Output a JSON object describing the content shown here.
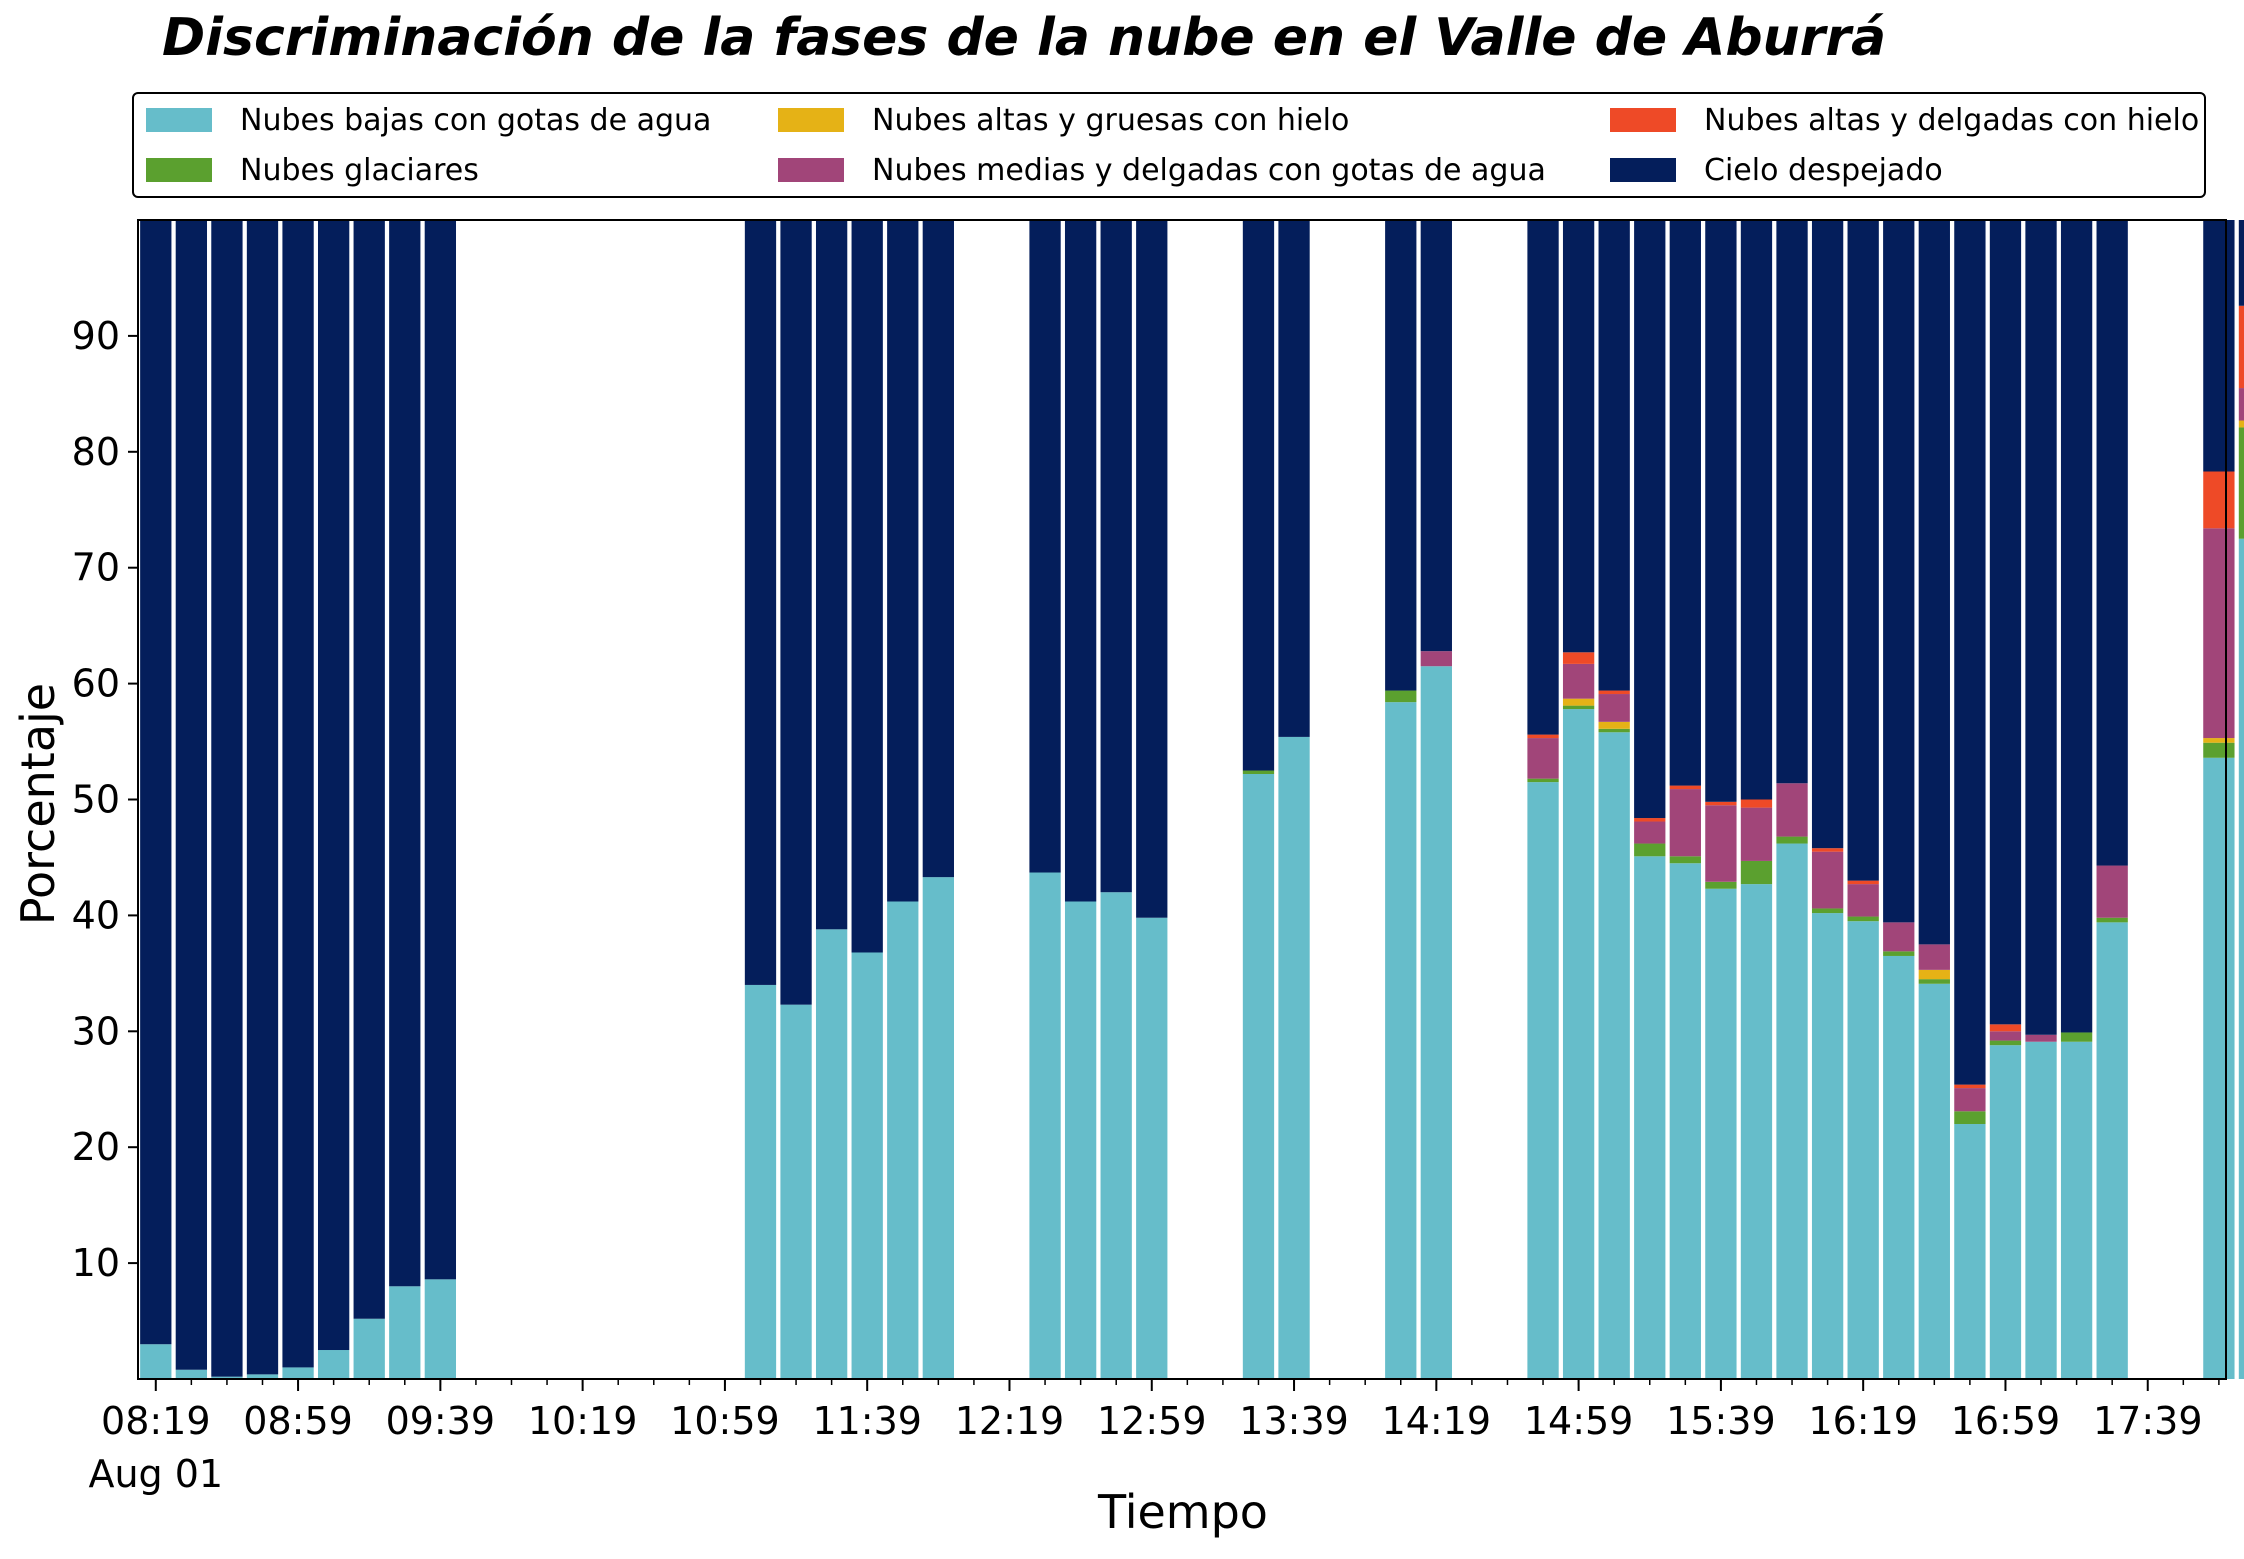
{
  "chart_data": {
    "type": "bar",
    "stacked": true,
    "title": "Discriminación de la fases de la nube en el Valle de Aburrá",
    "xlabel": "Tiempo",
    "ylabel": "Porcentaje",
    "ylim": [
      0,
      100
    ],
    "yticks": [
      10,
      20,
      30,
      40,
      50,
      60,
      70,
      80,
      90
    ],
    "x_date_label": "Aug 01",
    "x_range": [
      "08:14",
      "18:01"
    ],
    "xtick_labels": [
      "08:19",
      "08:59",
      "09:39",
      "10:19",
      "10:59",
      "11:39",
      "12:19",
      "12:59",
      "13:39",
      "14:19",
      "14:59",
      "15:39",
      "16:19",
      "16:59",
      "17:39"
    ],
    "bar_interval_minutes": 10,
    "grid": false,
    "legend_position": "top",
    "x": [
      "08:19",
      "08:29",
      "08:39",
      "08:49",
      "08:59",
      "09:09",
      "09:19",
      "09:29",
      "09:39",
      "11:09",
      "11:19",
      "11:29",
      "11:39",
      "11:49",
      "11:59",
      "12:09",
      "12:29",
      "12:39",
      "12:49",
      "12:59",
      "13:29",
      "13:39",
      "14:09",
      "14:19",
      "14:49",
      "14:59",
      "15:09",
      "15:19",
      "15:29",
      "15:39",
      "15:49",
      "15:59",
      "16:09",
      "16:19",
      "16:29",
      "16:39",
      "16:49",
      "16:59",
      "17:09",
      "17:19",
      "17:29",
      "17:59",
      "18:09"
    ],
    "series": [
      {
        "name": "Nubes bajas con gotas de agua",
        "color": "#66BDCA",
        "values": [
          3.0,
          0.8,
          0.2,
          0.4,
          1.0,
          2.5,
          5.2,
          8.0,
          8.6,
          34.0,
          32.3,
          38.8,
          36.8,
          41.2,
          43.3,
          0,
          43.7,
          41.2,
          42.0,
          39.8,
          52.2,
          55.4,
          58.4,
          61.5,
          51.5,
          57.8,
          55.8,
          45.1,
          44.5,
          42.3,
          42.7,
          46.2,
          40.2,
          39.5,
          36.5,
          34.1,
          22.0,
          28.8,
          29.1,
          29.1,
          39.4,
          53.6,
          72.5
        ]
      },
      {
        "name": "Nubes glaciares",
        "color": "#5BA02F",
        "values": [
          0,
          0,
          0,
          0,
          0,
          0,
          0,
          0,
          0,
          0,
          0,
          0,
          0,
          0,
          0,
          0,
          0,
          0,
          0,
          0,
          0.3,
          0,
          1.0,
          0,
          0.3,
          0.3,
          0.3,
          1.1,
          0.6,
          0.6,
          2.0,
          0.6,
          0.4,
          0.4,
          0.4,
          0.4,
          1.1,
          0.4,
          0,
          0.8,
          0.4,
          1.3,
          9.6
        ]
      },
      {
        "name": "Nubes altas y gruesas con hielo",
        "color": "#E5B216",
        "values": [
          0,
          0,
          0,
          0,
          0,
          0,
          0,
          0,
          0,
          0,
          0,
          0,
          0,
          0,
          0,
          0,
          0,
          0,
          0,
          0,
          0,
          0,
          0,
          0,
          0,
          0.6,
          0.6,
          0,
          0,
          0,
          0,
          0,
          0,
          0,
          0,
          0.8,
          0,
          0,
          0,
          0,
          0,
          0.4,
          0.6
        ]
      },
      {
        "name": "Nubes medias y delgadas con gotas de agua",
        "color": "#A14579",
        "values": [
          0,
          0,
          0,
          0,
          0,
          0,
          0,
          0,
          0,
          0,
          0,
          0,
          0,
          0,
          0,
          0,
          0,
          0,
          0,
          0,
          0,
          0,
          0,
          1.3,
          3.5,
          3.0,
          2.4,
          1.9,
          5.8,
          6.6,
          4.6,
          4.6,
          4.9,
          2.8,
          2.5,
          2.2,
          2.0,
          0.8,
          0.6,
          0,
          4.5,
          18.1,
          2.8
        ]
      },
      {
        "name": "Nubes altas y delgadas con hielo",
        "color": "#EE4A27",
        "values": [
          0,
          0,
          0,
          0,
          0,
          0,
          0,
          0,
          0,
          0,
          0,
          0,
          0,
          0,
          0,
          0,
          0,
          0,
          0,
          0,
          0,
          0,
          0,
          0,
          0.3,
          1.0,
          0.3,
          0.3,
          0.3,
          0.3,
          0.7,
          0,
          0.3,
          0.3,
          0,
          0,
          0.3,
          0.6,
          0,
          0,
          0,
          4.9,
          7.1
        ]
      },
      {
        "name": "Cielo despejado",
        "color": "#041E5B",
        "values": [
          97.0,
          99.2,
          99.8,
          99.6,
          99.0,
          97.5,
          94.8,
          92.0,
          91.4,
          66.0,
          67.7,
          61.2,
          63.2,
          58.8,
          56.7,
          0,
          56.3,
          58.8,
          58.0,
          60.2,
          47.5,
          44.6,
          40.6,
          37.2,
          44.4,
          37.3,
          40.6,
          51.6,
          48.8,
          50.2,
          50.0,
          48.6,
          54.2,
          57.0,
          60.6,
          62.5,
          74.6,
          69.4,
          70.3,
          70.1,
          55.7,
          21.7,
          7.4
        ]
      }
    ]
  }
}
